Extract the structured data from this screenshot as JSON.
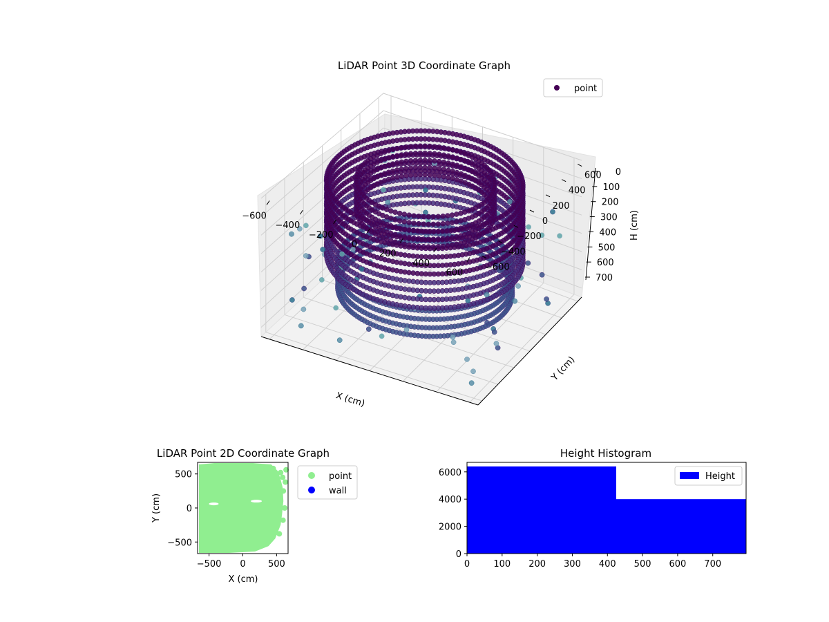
{
  "colors": {
    "viridis_dark": "#440154",
    "viridis_mid": "#3b528b",
    "viridis_teal": "#21918c",
    "point_2d": "#90ee90",
    "wall": "#0000ff",
    "hist_bar": "#0000ff"
  },
  "chart_data": [
    {
      "type": "scatter",
      "projection": "3d",
      "title": "LiDAR Point 3D Coordinate Graph",
      "xlabel": "X (cm)",
      "ylabel": "Y (cm)",
      "zlabel": "H (cm)",
      "xticks": [
        "−600",
        "−400",
        "−200",
        "0",
        "200",
        "400",
        "600"
      ],
      "yticks": [
        "−600",
        "−400",
        "−200",
        "0",
        "200",
        "400",
        "600"
      ],
      "zticks": [
        "0",
        "100",
        "200",
        "300",
        "400",
        "500",
        "600",
        "700"
      ],
      "xlim": [
        -650,
        650
      ],
      "ylim": [
        -650,
        650
      ],
      "zlim": [
        0,
        750
      ],
      "z_inverted": true,
      "grid": true,
      "legend": {
        "placement": "upper-right",
        "entries": [
          "point"
        ]
      },
      "series": [
        {
          "name": "point",
          "shape": "ring-structure",
          "outer_radius": 600,
          "inner_radius": 400,
          "height_range": [
            0,
            650
          ]
        }
      ]
    },
    {
      "type": "scatter",
      "title": "LiDAR Point 2D Coordinate Graph",
      "xlabel": "X (cm)",
      "ylabel": "Y (cm)",
      "xticks": [
        "−500",
        "0",
        "500"
      ],
      "yticks": [
        "−500",
        "0",
        "500"
      ],
      "xlim": [
        -670,
        670
      ],
      "ylim": [
        -670,
        670
      ],
      "legend": {
        "placement": "outside-right",
        "entries": [
          "point",
          "wall"
        ]
      },
      "series": [
        {
          "name": "point",
          "extent_x": [
            -650,
            600
          ],
          "extent_y": [
            -650,
            650
          ]
        },
        {
          "name": "wall",
          "count": 0
        }
      ]
    },
    {
      "type": "bar",
      "title": "Height Histogram",
      "xticks": [
        "0",
        "100",
        "200",
        "300",
        "400",
        "500",
        "600",
        "700"
      ],
      "yticks": [
        "0",
        "2000",
        "4000",
        "6000"
      ],
      "xlim": [
        0,
        795
      ],
      "ylim": [
        0,
        6700
      ],
      "legend": {
        "placement": "upper-right",
        "entries": [
          "Height"
        ]
      },
      "series": [
        {
          "name": "Height",
          "bins": [
            {
              "x0": 0,
              "x1": 425,
              "value": 6400
            },
            {
              "x0": 425,
              "x1": 795,
              "value": 4000
            }
          ]
        }
      ]
    }
  ]
}
